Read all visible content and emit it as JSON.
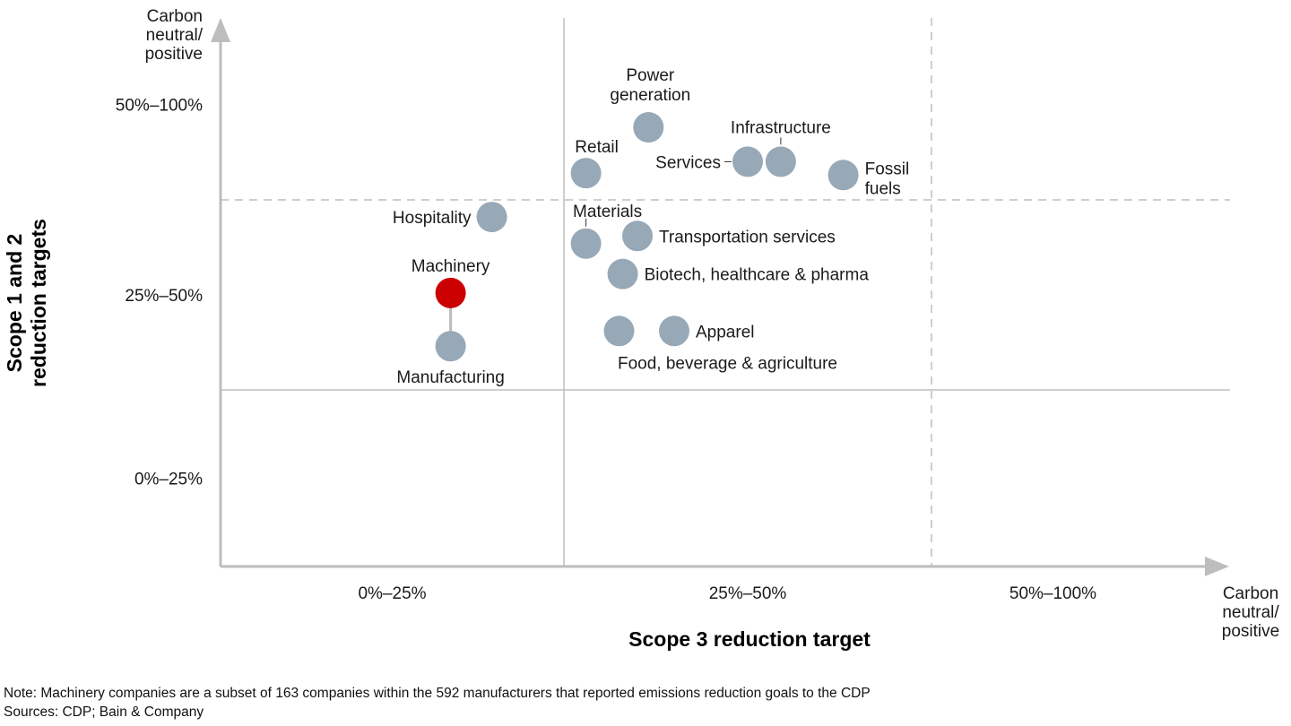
{
  "chart_data": {
    "type": "scatter",
    "title": "",
    "xlabel": "Scope 3 reduction target",
    "ylabel": "Scope 1 and 2 reduction targets",
    "ylabel_lines": [
      "Scope 1 and 2",
      "reduction targets"
    ],
    "x_categories": [
      "0%–25%",
      "25%–50%",
      "50%–100%"
    ],
    "y_categories": [
      "0%–25%",
      "25%–50%",
      "50%–100%"
    ],
    "x_axis_end_label": [
      "Carbon",
      "neutral/",
      "positive"
    ],
    "y_axis_end_label": [
      "Carbon",
      "neutral/",
      "positive"
    ],
    "xlim": [
      0,
      3.3
    ],
    "ylim": [
      0,
      3.5
    ],
    "category_boundaries": {
      "x": [
        1,
        2
      ],
      "y": [
        1,
        2
      ]
    },
    "grid": "quadrant boundaries (solid at 1, dashed at 2)",
    "colors": {
      "highlight": "#cc0000",
      "default": "#97a8b7",
      "axis": "#bdbdbd",
      "grid": "#bdbdbd"
    },
    "points": [
      {
        "name": "Machinery",
        "x": 0.67,
        "y": 1.51,
        "highlight": true
      },
      {
        "name": "Manufacturing",
        "x": 0.67,
        "y": 1.23,
        "highlight": false
      },
      {
        "name": "Hospitality",
        "x": 0.79,
        "y": 1.91,
        "highlight": false
      },
      {
        "name": "Retail",
        "x": 1.06,
        "y": 2.14,
        "highlight": false
      },
      {
        "name": "Materials",
        "x": 1.06,
        "y": 1.77,
        "highlight": false
      },
      {
        "name": "Power generation",
        "x": 1.23,
        "y": 2.38,
        "highlight": false
      },
      {
        "name": "Transportation services",
        "x": 1.2,
        "y": 1.81,
        "highlight": false
      },
      {
        "name": "Biotech, healthcare & pharma",
        "x": 1.16,
        "y": 1.61,
        "highlight": false
      },
      {
        "name": "Food, beverage & agriculture",
        "x": 1.15,
        "y": 1.31,
        "highlight": false
      },
      {
        "name": "Apparel",
        "x": 1.3,
        "y": 1.31,
        "highlight": false
      },
      {
        "name": "Services",
        "x": 1.5,
        "y": 2.2,
        "highlight": false
      },
      {
        "name": "Infrastructure",
        "x": 1.59,
        "y": 2.2,
        "highlight": false
      },
      {
        "name": "Fossil fuels",
        "x": 1.76,
        "y": 2.13,
        "highlight": false
      }
    ]
  },
  "notes": {
    "note": "Note: Machinery companies are a subset of 163 companies within the 592 manufacturers that reported emissions reduction goals to the CDP",
    "sources": "Sources: CDP; Bain & Company"
  }
}
